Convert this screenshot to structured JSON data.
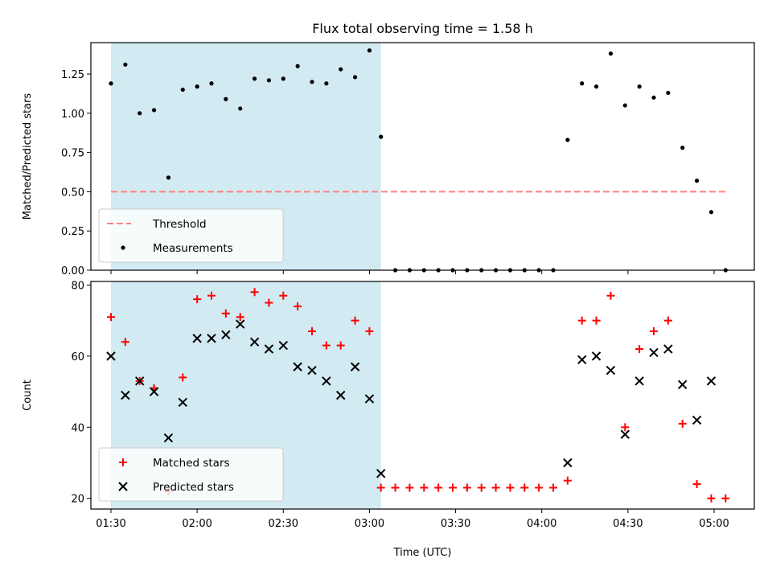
{
  "chart_data": [
    {
      "type": "scatter",
      "title": "Flux total observing time = 1.58 h",
      "xlabel": "",
      "ylabel": "Matched/Predicted stars",
      "xlim": [
        "01:23",
        "05:14"
      ],
      "ylim": [
        0,
        1.45
      ],
      "yticks": [
        0.0,
        0.25,
        0.5,
        0.75,
        1.0,
        1.25
      ],
      "ytick_labels": [
        "0.00",
        "0.25",
        "0.50",
        "0.75",
        "1.00",
        "1.25"
      ],
      "xticks": [
        "01:30",
        "02:00",
        "02:30",
        "03:00",
        "03:30",
        "04:00",
        "04:30",
        "05:00"
      ],
      "shaded_span": {
        "x0": "01:30",
        "x1": "03:04",
        "color": "#add8e6"
      },
      "legend_position": "lower-left",
      "series": [
        {
          "name": "Threshold",
          "type": "line",
          "style": "dashed",
          "color": "#ff8080",
          "x": [
            "01:30",
            "05:04"
          ],
          "y": [
            0.5,
            0.5
          ]
        },
        {
          "name": "Measurements",
          "type": "scatter",
          "color": "#000000",
          "x": [
            "01:30",
            "01:35",
            "01:40",
            "01:45",
            "01:50",
            "01:55",
            "02:00",
            "02:05",
            "02:10",
            "02:15",
            "02:20",
            "02:25",
            "02:30",
            "02:35",
            "02:40",
            "02:45",
            "02:50",
            "02:55",
            "03:00",
            "03:04",
            "03:09",
            "03:14",
            "03:19",
            "03:24",
            "03:29",
            "03:34",
            "03:39",
            "03:44",
            "03:49",
            "03:54",
            "03:59",
            "04:04",
            "04:09",
            "04:14",
            "04:19",
            "04:24",
            "04:29",
            "04:34",
            "04:39",
            "04:44",
            "04:49",
            "04:54",
            "04:59",
            "05:04"
          ],
          "y": [
            1.19,
            1.31,
            1.0,
            1.02,
            0.59,
            1.15,
            1.17,
            1.19,
            1.09,
            1.03,
            1.22,
            1.21,
            1.22,
            1.3,
            1.2,
            1.19,
            1.28,
            1.23,
            1.4,
            0.85,
            0.0,
            0.0,
            0.0,
            0.0,
            0.0,
            0.0,
            0.0,
            0.0,
            0.0,
            0.0,
            0.0,
            0.0,
            0.83,
            1.19,
            1.17,
            1.38,
            1.05,
            1.17,
            1.1,
            1.13,
            0.78,
            0.57,
            0.37,
            0.0
          ]
        }
      ]
    },
    {
      "type": "scatter",
      "title": "",
      "xlabel": "Time (UTC)",
      "ylabel": "Count",
      "xlim": [
        "01:23",
        "05:14"
      ],
      "ylim": [
        17,
        81
      ],
      "yticks": [
        20,
        40,
        60,
        80
      ],
      "ytick_labels": [
        "20",
        "40",
        "60",
        "80"
      ],
      "xticks": [
        "01:30",
        "02:00",
        "02:30",
        "03:00",
        "03:30",
        "04:00",
        "04:30",
        "05:00"
      ],
      "xtick_labels": [
        "01:30",
        "02:00",
        "02:30",
        "03:00",
        "03:30",
        "04:00",
        "04:30",
        "05:00"
      ],
      "shaded_span": {
        "x0": "01:30",
        "x1": "03:04",
        "color": "#add8e6"
      },
      "legend_position": "lower-left",
      "series": [
        {
          "name": "Matched stars",
          "marker": "plus",
          "color": "#ff0000",
          "x": [
            "01:30",
            "01:35",
            "01:40",
            "01:45",
            "01:50",
            "01:55",
            "02:00",
            "02:05",
            "02:10",
            "02:15",
            "02:20",
            "02:25",
            "02:30",
            "02:35",
            "02:40",
            "02:45",
            "02:50",
            "02:55",
            "03:00",
            "03:04",
            "03:09",
            "03:14",
            "03:19",
            "03:24",
            "03:29",
            "03:34",
            "03:39",
            "03:44",
            "03:49",
            "03:54",
            "03:59",
            "04:04",
            "04:09",
            "04:14",
            "04:19",
            "04:24",
            "04:29",
            "04:34",
            "04:39",
            "04:44",
            "04:49",
            "04:54",
            "04:59",
            "05:04"
          ],
          "y": [
            71,
            64,
            53,
            51,
            22,
            54,
            76,
            77,
            72,
            71,
            78,
            75,
            77,
            74,
            67,
            63,
            63,
            70,
            67,
            23,
            23,
            23,
            23,
            23,
            23,
            23,
            23,
            23,
            23,
            23,
            23,
            23,
            25,
            70,
            70,
            77,
            40,
            62,
            67,
            70,
            41,
            24,
            20,
            20
          ]
        },
        {
          "name": "Predicted stars",
          "marker": "x",
          "color": "#000000",
          "x": [
            "01:30",
            "01:35",
            "01:40",
            "01:45",
            "01:50",
            "01:55",
            "02:00",
            "02:05",
            "02:10",
            "02:15",
            "02:20",
            "02:25",
            "02:30",
            "02:35",
            "02:40",
            "02:45",
            "02:50",
            "02:55",
            "03:00",
            "03:04",
            "04:09",
            "04:14",
            "04:19",
            "04:24",
            "04:29",
            "04:34",
            "04:39",
            "04:44",
            "04:49",
            "04:54",
            "04:59"
          ],
          "y": [
            60,
            49,
            53,
            50,
            37,
            47,
            65,
            65,
            66,
            69,
            64,
            62,
            63,
            57,
            56,
            53,
            49,
            57,
            48,
            27,
            30,
            59,
            60,
            56,
            38,
            53,
            61,
            62,
            52,
            42,
            53
          ]
        }
      ]
    }
  ]
}
